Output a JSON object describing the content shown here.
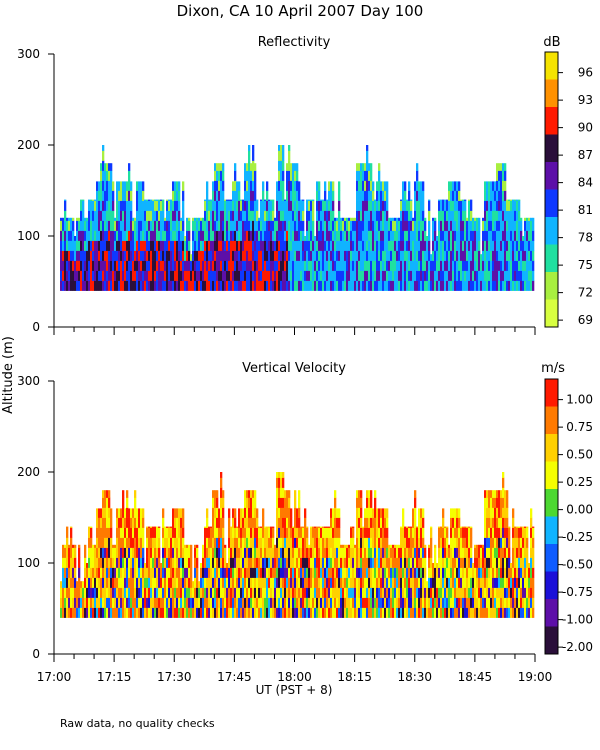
{
  "figure": {
    "title": "Dixon, CA 10 April 2007  Day 100",
    "ylabel": "Altitude (m)",
    "xlabel": "UT  (PST + 8)",
    "footnote": "Raw data, no quality checks"
  },
  "chart_data": [
    {
      "type": "heatmap",
      "title": "Reflectivity",
      "ylabel": "Altitude (m)",
      "yticks": [
        0,
        100,
        200,
        300
      ],
      "ylim": [
        0,
        300
      ],
      "xlim": [
        "17:00",
        "19:00"
      ],
      "colorbar": {
        "unit": "dB",
        "ticks": [
          "96",
          "93",
          "90",
          "87",
          "84",
          "81",
          "78",
          "75",
          "72",
          "69"
        ],
        "colors": [
          "#f5e300",
          "#ff9100",
          "#ff1a00",
          "#2a0f3a",
          "#5d0fa8",
          "#0e38ff",
          "#10b4ff",
          "#20e0a0",
          "#a8ef40",
          "#d8ff40"
        ]
      },
      "data_floor_m": 40,
      "echo_top_typical_m": 120,
      "echo_top_max_m": 200,
      "strong_echo_until": "17:58",
      "columns": [
        {
          "t": 0,
          "top": 120
        },
        {
          "t": 4,
          "top": 120
        },
        {
          "t": 8,
          "top": 140
        },
        {
          "t": 10,
          "top": 160
        },
        {
          "t": 11,
          "top": 180
        },
        {
          "t": 14,
          "top": 160
        },
        {
          "t": 17,
          "top": 160
        },
        {
          "t": 22,
          "top": 140
        },
        {
          "t": 25,
          "top": 140
        },
        {
          "t": 29,
          "top": 160
        },
        {
          "t": 32,
          "top": 120
        },
        {
          "t": 37,
          "top": 140
        },
        {
          "t": 39,
          "top": 180
        },
        {
          "t": 42,
          "top": 140
        },
        {
          "t": 44,
          "top": 160
        },
        {
          "t": 47,
          "top": 180
        },
        {
          "t": 50,
          "top": 140
        },
        {
          "t": 55,
          "top": 200
        },
        {
          "t": 57,
          "top": 180
        },
        {
          "t": 61,
          "top": 140
        },
        {
          "t": 65,
          "top": 140
        },
        {
          "t": 68,
          "top": 160
        },
        {
          "t": 71,
          "top": 120
        },
        {
          "t": 75,
          "top": 180
        },
        {
          "t": 79,
          "top": 160
        },
        {
          "t": 83,
          "top": 120
        },
        {
          "t": 86,
          "top": 140
        },
        {
          "t": 89,
          "top": 160
        },
        {
          "t": 92,
          "top": 120
        },
        {
          "t": 95,
          "top": 140
        },
        {
          "t": 98,
          "top": 160
        },
        {
          "t": 101,
          "top": 140
        },
        {
          "t": 104,
          "top": 120
        },
        {
          "t": 107,
          "top": 160
        },
        {
          "t": 110,
          "top": 180
        },
        {
          "t": 113,
          "top": 140
        },
        {
          "t": 116,
          "top": 120
        }
      ]
    },
    {
      "type": "heatmap",
      "title": "Vertical Velocity",
      "ylabel": "Altitude (m)",
      "yticks": [
        0,
        100,
        200,
        300
      ],
      "ylim": [
        0,
        300
      ],
      "xlim": [
        "17:00",
        "19:00"
      ],
      "xticks": [
        "17:00",
        "17:15",
        "17:30",
        "17:45",
        "18:00",
        "18:15",
        "18:30",
        "18:45",
        "19:00"
      ],
      "colorbar": {
        "unit": "m/s",
        "ticks": [
          "1.00",
          "0.75",
          "0.50",
          "0.25",
          "0.00",
          "-0.25",
          "-0.50",
          "-0.75",
          "-1.00",
          "-2.00"
        ],
        "colors": [
          "#ff1a00",
          "#ff7a00",
          "#ffd000",
          "#f5ff00",
          "#4cd832",
          "#10b4ff",
          "#0e5cff",
          "#1b10d8",
          "#5d0fa8",
          "#2a0f3a"
        ]
      },
      "data_floor_m": 40,
      "echo_top_typical_m": 120,
      "echo_top_max_m": 200,
      "columns": [
        {
          "t": 0,
          "top": 120
        },
        {
          "t": 4,
          "top": 120
        },
        {
          "t": 8,
          "top": 140
        },
        {
          "t": 10,
          "top": 160
        },
        {
          "t": 11,
          "top": 180
        },
        {
          "t": 14,
          "top": 160
        },
        {
          "t": 17,
          "top": 160
        },
        {
          "t": 22,
          "top": 140
        },
        {
          "t": 25,
          "top": 140
        },
        {
          "t": 29,
          "top": 160
        },
        {
          "t": 32,
          "top": 120
        },
        {
          "t": 37,
          "top": 140
        },
        {
          "t": 39,
          "top": 180
        },
        {
          "t": 42,
          "top": 140
        },
        {
          "t": 44,
          "top": 160
        },
        {
          "t": 47,
          "top": 180
        },
        {
          "t": 50,
          "top": 140
        },
        {
          "t": 55,
          "top": 200
        },
        {
          "t": 57,
          "top": 180
        },
        {
          "t": 61,
          "top": 140
        },
        {
          "t": 65,
          "top": 140
        },
        {
          "t": 68,
          "top": 160
        },
        {
          "t": 71,
          "top": 120
        },
        {
          "t": 75,
          "top": 180
        },
        {
          "t": 79,
          "top": 160
        },
        {
          "t": 83,
          "top": 120
        },
        {
          "t": 86,
          "top": 140
        },
        {
          "t": 89,
          "top": 160
        },
        {
          "t": 92,
          "top": 120
        },
        {
          "t": 95,
          "top": 140
        },
        {
          "t": 98,
          "top": 160
        },
        {
          "t": 101,
          "top": 140
        },
        {
          "t": 104,
          "top": 120
        },
        {
          "t": 107,
          "top": 180
        },
        {
          "t": 110,
          "top": 180
        },
        {
          "t": 113,
          "top": 140
        },
        {
          "t": 116,
          "top": 140
        }
      ]
    }
  ]
}
